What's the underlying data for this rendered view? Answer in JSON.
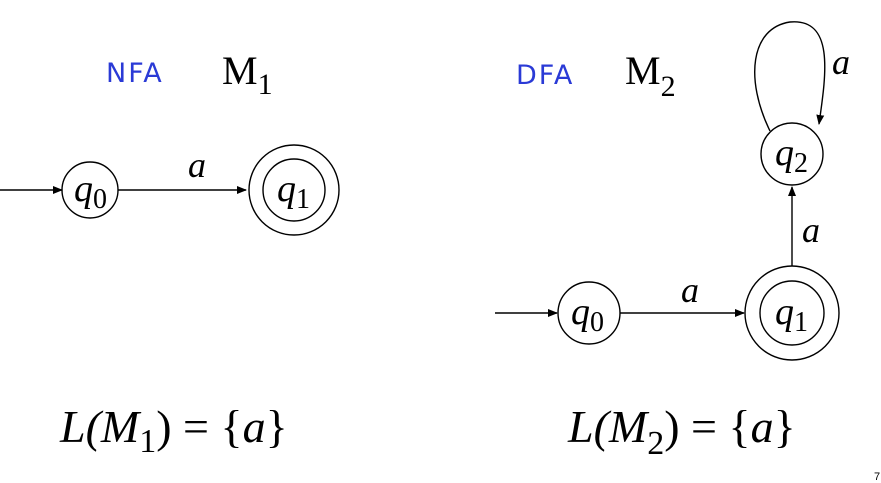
{
  "left": {
    "heading": "NFA",
    "machine": {
      "letter": "M",
      "sub": "1"
    },
    "states": [
      {
        "letter": "q",
        "sub": "0"
      },
      {
        "letter": "q",
        "sub": "1"
      }
    ],
    "edges": [
      {
        "label": "a"
      }
    ],
    "formula": {
      "lhs_L": "L(",
      "lhs_M": "M",
      "lhs_sub": "1",
      "rhs_close": ") = {",
      "rhs_a": "a",
      "rhs_end": "}"
    }
  },
  "right": {
    "heading": "DFA",
    "machine": {
      "letter": "M",
      "sub": "2"
    },
    "states": [
      {
        "letter": "q",
        "sub": "0"
      },
      {
        "letter": "q",
        "sub": "1"
      },
      {
        "letter": "q",
        "sub": "2"
      }
    ],
    "edges": [
      {
        "label": "a"
      },
      {
        "label": "a"
      },
      {
        "label": "a"
      }
    ],
    "formula": {
      "lhs_L": "L(",
      "lhs_M": "M",
      "lhs_sub": "2",
      "rhs_close": ") = {",
      "rhs_a": "a",
      "rhs_end": "}"
    }
  },
  "page_number": "7"
}
